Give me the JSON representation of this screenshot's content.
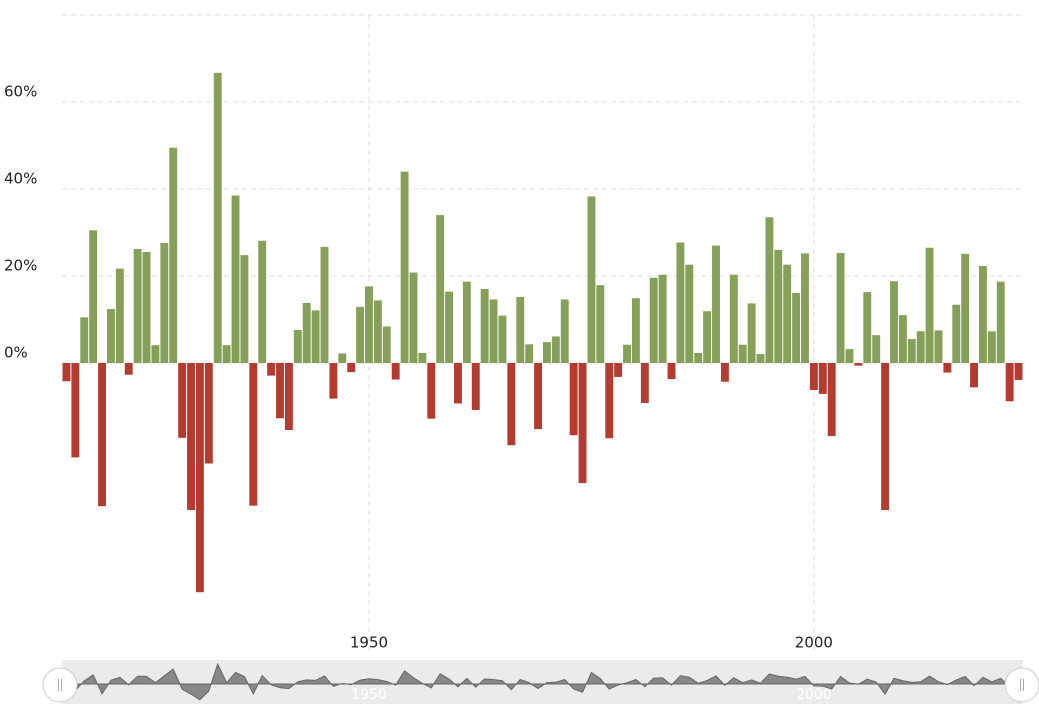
{
  "chart_data": {
    "type": "bar",
    "x": [
      1916,
      1917,
      1918,
      1919,
      1920,
      1921,
      1922,
      1923,
      1924,
      1925,
      1926,
      1927,
      1928,
      1929,
      1930,
      1931,
      1932,
      1933,
      1934,
      1935,
      1936,
      1937,
      1938,
      1939,
      1940,
      1941,
      1942,
      1943,
      1944,
      1945,
      1946,
      1947,
      1948,
      1949,
      1950,
      1951,
      1952,
      1953,
      1954,
      1955,
      1956,
      1957,
      1958,
      1959,
      1960,
      1961,
      1962,
      1963,
      1964,
      1965,
      1966,
      1967,
      1968,
      1969,
      1970,
      1971,
      1972,
      1973,
      1974,
      1975,
      1976,
      1977,
      1978,
      1979,
      1980,
      1981,
      1982,
      1983,
      1984,
      1985,
      1986,
      1987,
      1988,
      1989,
      1990,
      1991,
      1992,
      1993,
      1994,
      1995,
      1996,
      1997,
      1998,
      1999,
      2000,
      2001,
      2002,
      2003,
      2004,
      2005,
      2006,
      2007,
      2008,
      2009,
      2010,
      2011,
      2012,
      2013,
      2014,
      2015,
      2016,
      2017,
      2018,
      2019,
      2020,
      2021,
      2022,
      2023
    ],
    "values": [
      -4.2,
      -21.7,
      10.5,
      30.5,
      -32.9,
      12.4,
      21.7,
      -2.7,
      26.2,
      25.5,
      4.1,
      27.6,
      49.5,
      -17.2,
      -33.8,
      -52.7,
      -23.1,
      66.7,
      4.1,
      38.5,
      24.8,
      -32.8,
      28.1,
      -2.9,
      -12.7,
      -15.4,
      7.6,
      13.8,
      12.1,
      26.7,
      -8.2,
      2.2,
      -2.1,
      12.9,
      17.6,
      14.4,
      8.4,
      -3.8,
      44.0,
      20.8,
      2.3,
      -12.8,
      34.0,
      16.4,
      -9.3,
      18.7,
      -10.8,
      17.0,
      14.6,
      10.9,
      -18.9,
      15.2,
      4.3,
      -15.2,
      4.8,
      6.1,
      14.6,
      -16.6,
      -27.6,
      38.3,
      17.9,
      -17.3,
      -3.2,
      4.2,
      14.9,
      -9.2,
      19.6,
      20.3,
      -3.7,
      27.7,
      22.6,
      2.3,
      11.9,
      27.0,
      -4.3,
      20.3,
      4.2,
      13.7,
      2.1,
      33.5,
      26.0,
      22.6,
      16.1,
      25.2,
      -6.2,
      -7.1,
      -16.8,
      25.3,
      3.2,
      -0.6,
      16.3,
      6.4,
      -33.8,
      18.8,
      11.0,
      5.5,
      7.3,
      26.5,
      7.5,
      -2.2,
      13.4,
      25.1,
      -5.6,
      22.3,
      7.3,
      18.7,
      -8.8,
      -3.9
    ],
    "positive_color": "#86a059",
    "negative_color": "#b33b30",
    "xlim": [
      1915.5,
      2023.5
    ],
    "xticks": [
      1950,
      2000
    ],
    "ylim": [
      -60,
      80
    ],
    "yticks": [
      {
        "value": 0,
        "label": "0%"
      },
      {
        "value": 20,
        "label": "20%"
      },
      {
        "value": 40,
        "label": "40%"
      },
      {
        "value": 60,
        "label": "60%"
      }
    ],
    "grid": true
  }
}
